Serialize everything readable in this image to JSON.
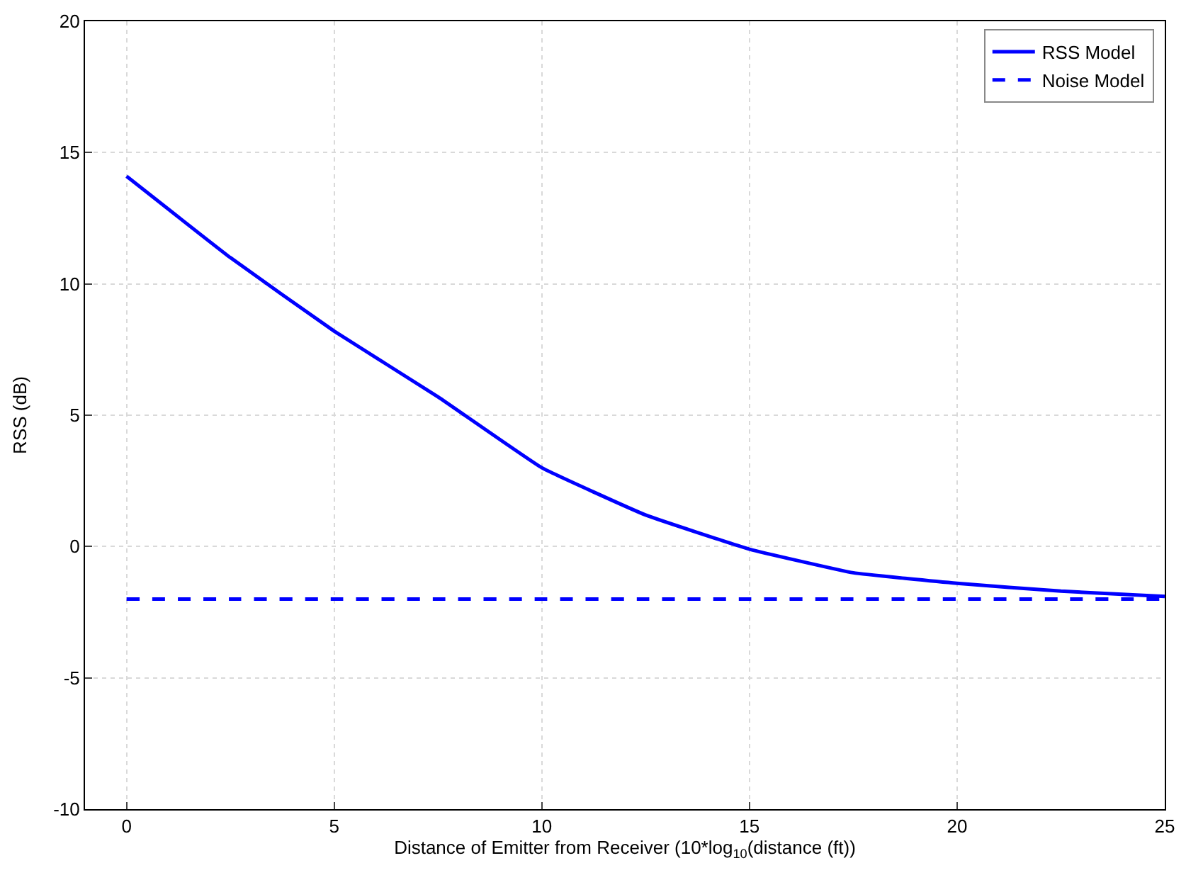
{
  "chart_data": {
    "type": "line",
    "xlabel": "Distance of Emitter from Receiver (10*log$_{10}$(distance (ft))",
    "ylabel": "RSS (dB)",
    "x": [
      0,
      2.5,
      5,
      7.5,
      10,
      12.5,
      15,
      17.5,
      20,
      22.5,
      25
    ],
    "series": [
      {
        "name": "RSS Model",
        "color": "#0000ff",
        "line_style": "solid",
        "values": [
          14.1,
          11.0,
          8.2,
          5.7,
          3.0,
          1.2,
          -0.1,
          -1.0,
          -1.4,
          -1.7,
          -1.9
        ]
      },
      {
        "name": "Noise Model",
        "color": "#0000ff",
        "line_style": "dashed",
        "values": [
          -2,
          -2,
          -2,
          -2,
          -2,
          -2,
          -2,
          -2,
          -2,
          -2,
          -2
        ]
      }
    ],
    "xlim": [
      -1,
      25
    ],
    "xticks": [
      0,
      5,
      10,
      15,
      20,
      25
    ],
    "ylim": [
      -10,
      20
    ],
    "yticks": [
      -10,
      -5,
      0,
      5,
      10,
      15,
      20
    ],
    "grid": true,
    "legend": "top right",
    "marker": "none"
  }
}
